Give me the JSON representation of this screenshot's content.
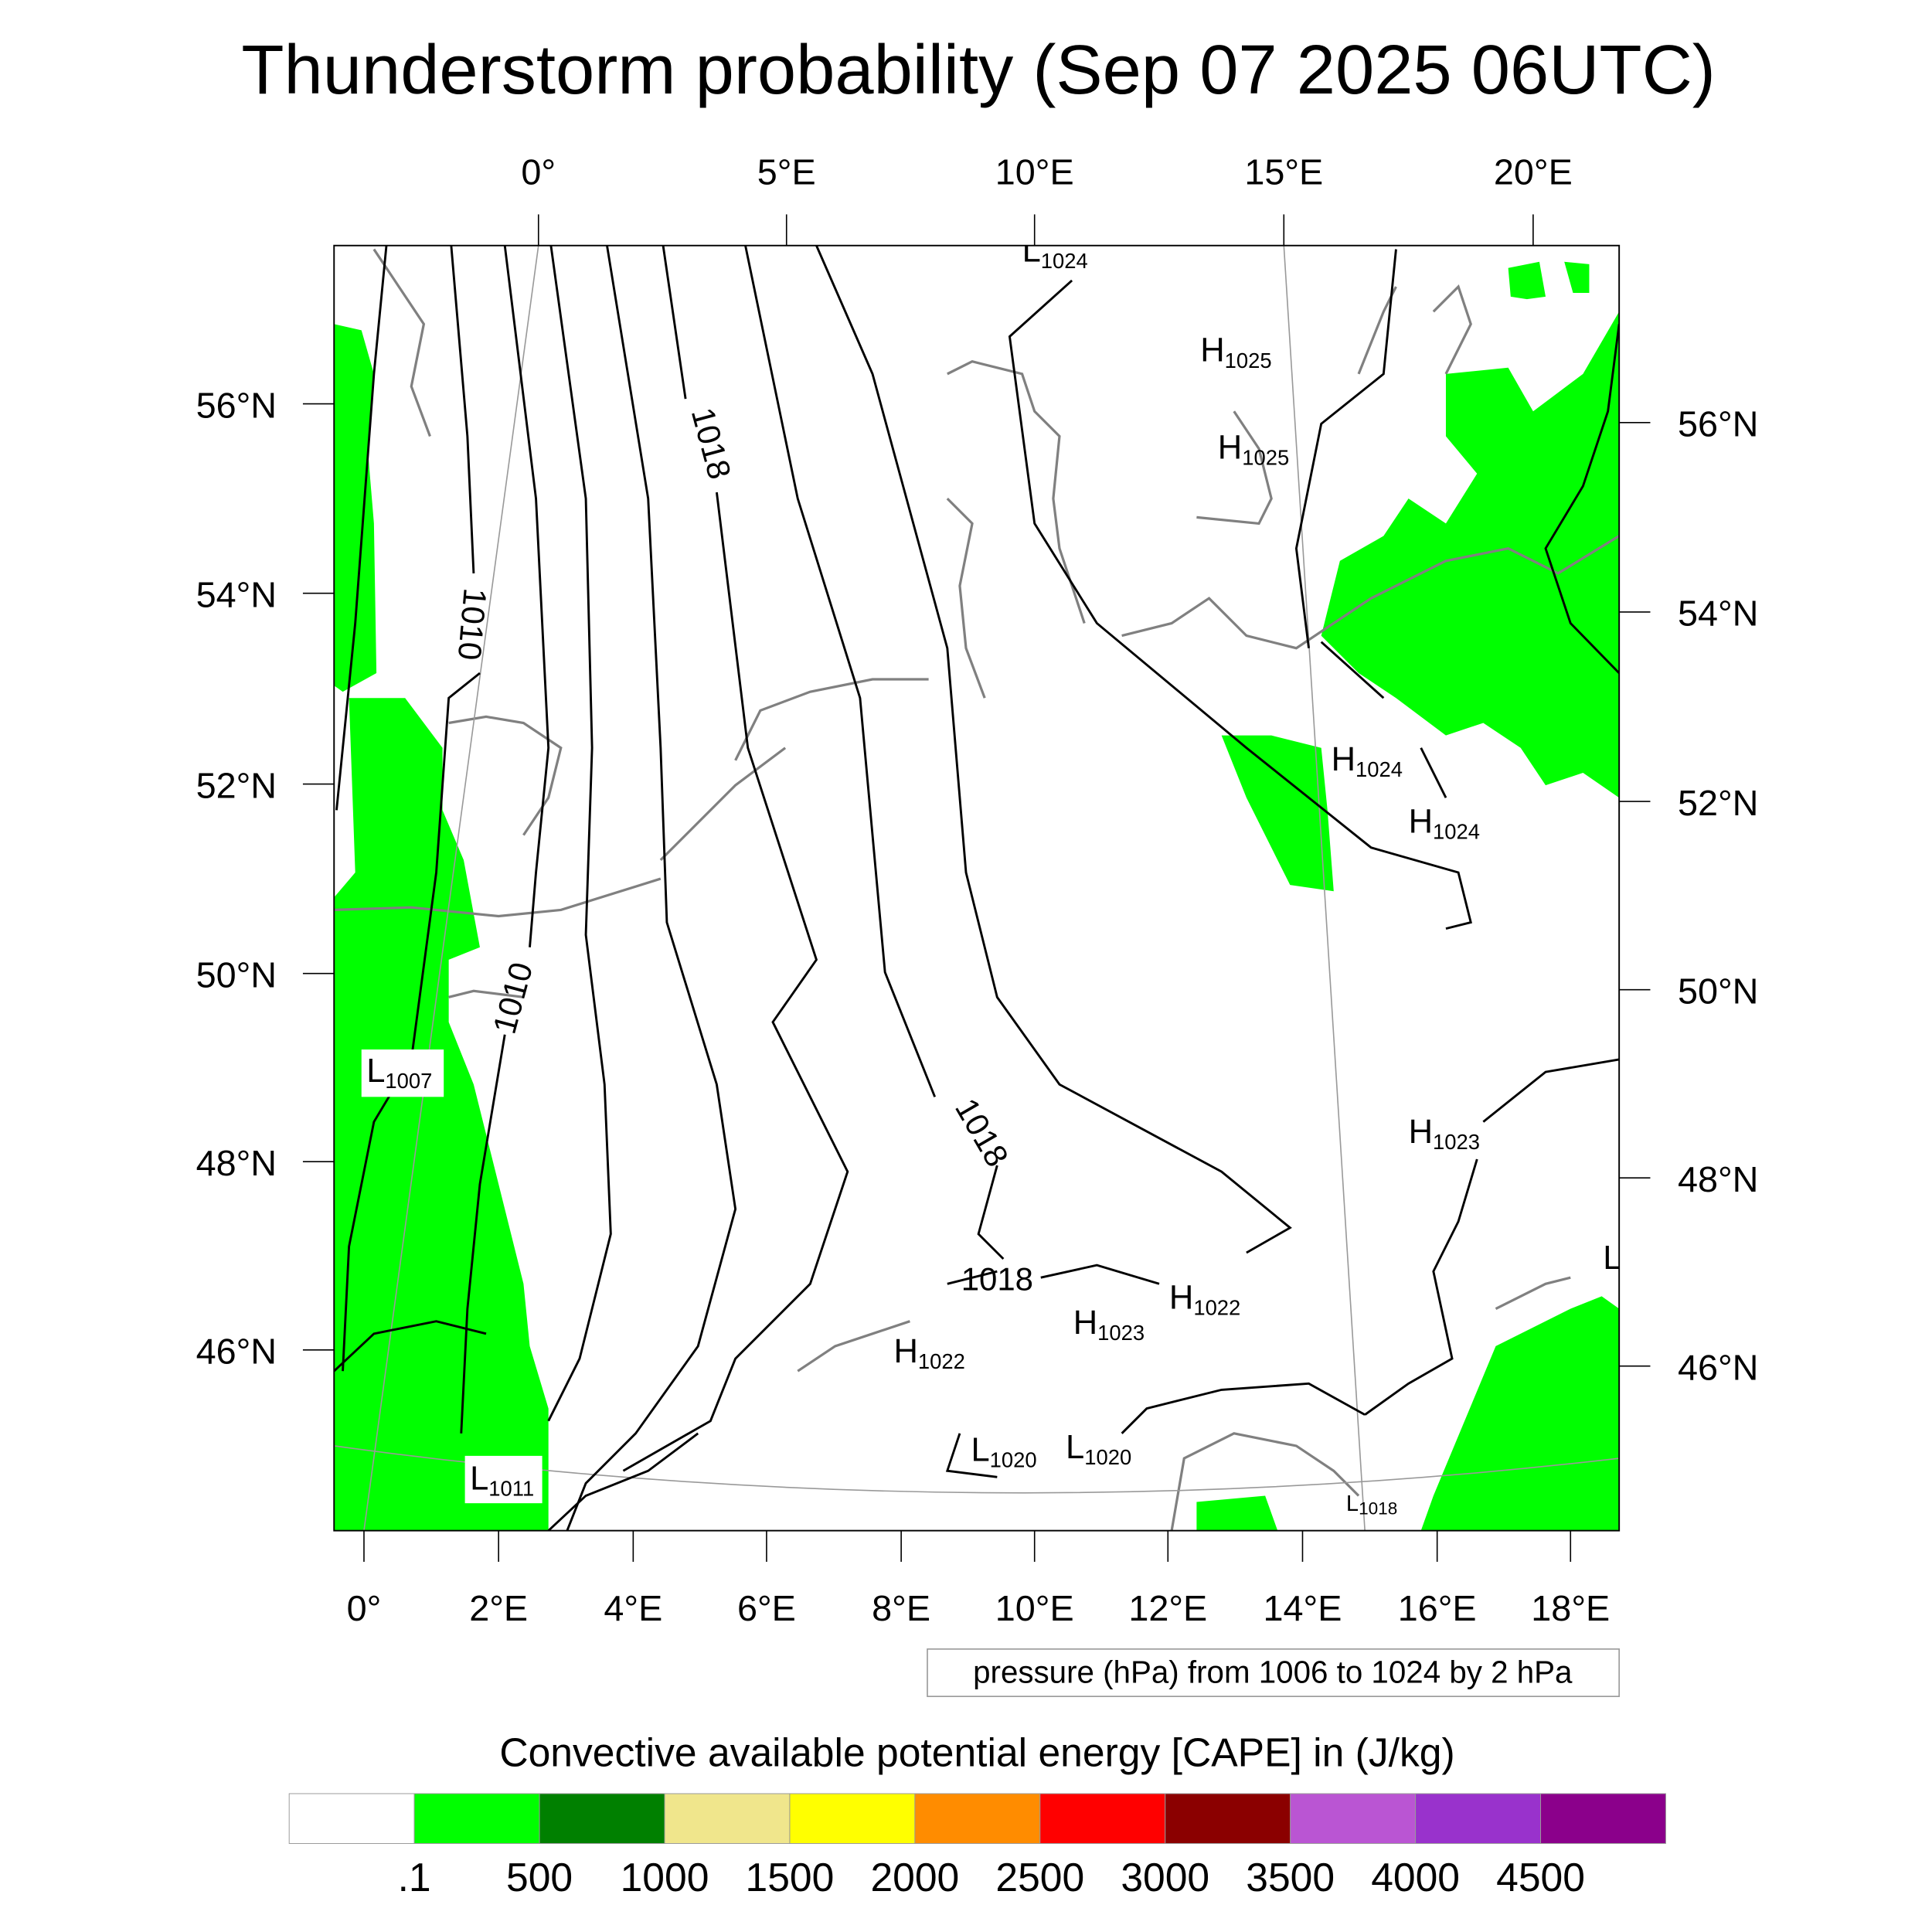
{
  "title": "Thunderstorm probability (Sep 07 2025 06UTC)",
  "top_lon_ticks": [
    "0°",
    "5°E",
    "10°E",
    "15°E",
    "20°E"
  ],
  "left_lat_ticks": [
    "56°N",
    "54°N",
    "52°N",
    "50°N",
    "48°N",
    "46°N"
  ],
  "right_lat_ticks": [
    "56°N",
    "54°N",
    "52°N",
    "50°N",
    "48°N",
    "46°N"
  ],
  "bottom_lon_ticks": [
    "0°",
    "2°E",
    "4°E",
    "6°E",
    "8°E",
    "10°E",
    "12°E",
    "14°E",
    "16°E",
    "18°E"
  ],
  "contour_labels": [
    "1010",
    "1018",
    "1010",
    "1018",
    "1018"
  ],
  "pressure_centers": [
    {
      "type": "L",
      "value": "1024"
    },
    {
      "type": "H",
      "value": "1025"
    },
    {
      "type": "H",
      "value": "1025"
    },
    {
      "type": "H",
      "value": "1024"
    },
    {
      "type": "H",
      "value": "1024"
    },
    {
      "type": "L",
      "value": "1007"
    },
    {
      "type": "H",
      "value": "1023"
    },
    {
      "type": "H",
      "value": "1022"
    },
    {
      "type": "H",
      "value": "1023"
    },
    {
      "type": "H",
      "value": "1022"
    },
    {
      "type": "L",
      "value": "1020"
    },
    {
      "type": "L",
      "value": "1020"
    },
    {
      "type": "L",
      "value": "1011"
    },
    {
      "type": "L",
      "value": "1018"
    },
    {
      "type": "L",
      "value": ""
    }
  ],
  "contour_info": "pressure (hPa) from 1006 to 1024 by 2 hPa",
  "colorbar": {
    "title": "Convective available potential energy [CAPE] in (J/kg)",
    "colors": [
      "#ffffff",
      "#00ff00",
      "#008000",
      "#f0e68c",
      "#ffff00",
      "#ff8c00",
      "#ff0000",
      "#8b0000",
      "#ba55d3",
      "#9932cc",
      "#8b008b"
    ],
    "labels": [
      ".1",
      "500",
      "1000",
      "1500",
      "2000",
      "2500",
      "3000",
      "3500",
      "4000",
      "4500"
    ]
  }
}
